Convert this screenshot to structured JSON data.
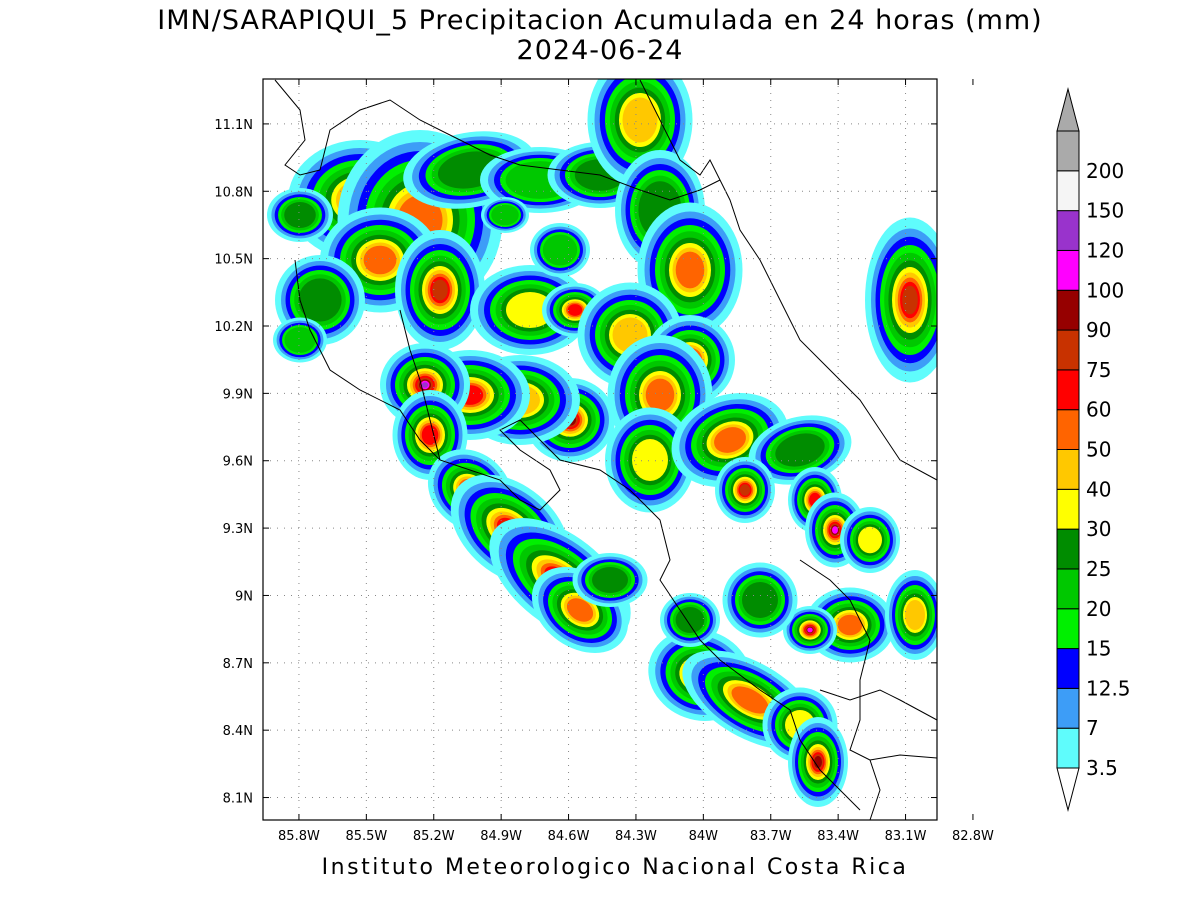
{
  "title": {
    "line1": "IMN/SARAPIQUI_5 Precipitacion Acumulada en 24 horas (mm)",
    "line2": "2024-06-24"
  },
  "credit": "Instituto Meteorologico Nacional Costa Rica",
  "map": {
    "lon_labels": [
      "85.8W",
      "85.5W",
      "85.2W",
      "84.9W",
      "84.6W",
      "84.3W",
      "84W",
      "83.7W",
      "83.4W",
      "83.1W",
      "82.8W"
    ],
    "lat_labels": [
      "11.1N",
      "10.8N",
      "10.5N",
      "10.2N",
      "9.9N",
      "9.6N",
      "9.3N",
      "9N",
      "8.7N",
      "8.4N",
      "8.1N"
    ],
    "lon_values": [
      -85.8,
      -85.5,
      -85.2,
      -84.9,
      -84.6,
      -84.3,
      -84.0,
      -83.7,
      -83.4,
      -83.1,
      -82.8
    ],
    "lat_values": [
      11.1,
      10.8,
      10.5,
      10.2,
      9.9,
      9.6,
      9.3,
      9.0,
      8.7,
      8.4,
      8.1
    ],
    "lon_range": [
      -85.96,
      -82.96
    ],
    "lat_range": [
      8.0,
      11.3
    ],
    "grid": true
  },
  "colorbar": {
    "levels": [
      "3.5",
      "7",
      "12.5",
      "15",
      "20",
      "25",
      "30",
      "40",
      "50",
      "60",
      "75",
      "90",
      "100",
      "120",
      "150",
      "200"
    ],
    "colors": [
      "#5ffcfc",
      "#3d9df7",
      "#0000ff",
      "#00f000",
      "#00c800",
      "#008c00",
      "#ffff00",
      "#ffc800",
      "#ff6400",
      "#ff0000",
      "#c83200",
      "#960000",
      "#ff00ff",
      "#9933cc",
      "#f5f5f5",
      "#aaaaaa"
    ],
    "under_color": "#ffffff",
    "over_color": "#aaaaaa"
  }
}
